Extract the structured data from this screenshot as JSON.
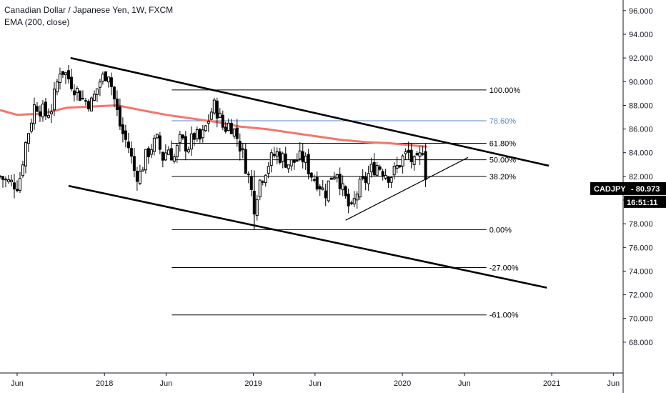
{
  "header": {
    "title": "Canadian Dollar / Japanese Yen, 1W, FXCM",
    "indicator": "EMA (200, close)"
  },
  "colors": {
    "candle": "#000000",
    "ema": "#f4766b",
    "fib_highlight": "#5b86c3",
    "price_label_bg": "#000000",
    "price_label_text": "#ffffff",
    "axis_text": "#131722",
    "axis_line": "#131722"
  },
  "chart_data": {
    "type": "candlestick",
    "symbol": "CADJPY",
    "interval": "1W",
    "last_price": "80.973",
    "countdown": "16:51:11",
    "ylim": [
      66.0,
      97.5
    ],
    "y_ticks": [
      "68.000",
      "70.000",
      "72.000",
      "74.000",
      "76.000",
      "78.000",
      "80.000",
      "82.000",
      "84.000",
      "86.000",
      "88.000",
      "90.000",
      "92.000",
      "94.000",
      "96.000"
    ],
    "x_range": [
      "2017-04-20",
      "2021-06-25"
    ],
    "x_ticks": [
      {
        "label": "Jun",
        "date": "2017-06-01"
      },
      {
        "label": "2018",
        "date": "2018-01-01"
      },
      {
        "label": "Jun",
        "date": "2018-06-01"
      },
      {
        "label": "2019",
        "date": "2019-01-01"
      },
      {
        "label": "Jun",
        "date": "2019-06-01"
      },
      {
        "label": "2020",
        "date": "2020-01-01"
      },
      {
        "label": "Jun",
        "date": "2020-06-01"
      },
      {
        "label": "2021",
        "date": "2021-01-01"
      },
      {
        "label": "Jun",
        "date": "2021-06-01"
      }
    ],
    "close_path": [
      [
        "2017-04-20",
        82.0
      ],
      [
        "2017-05-10",
        81.5
      ],
      [
        "2017-06-05",
        81.3
      ],
      [
        "2017-06-20",
        84.5
      ],
      [
        "2017-07-15",
        88.2
      ],
      [
        "2017-08-10",
        87.2
      ],
      [
        "2017-08-25",
        87.8
      ],
      [
        "2017-09-15",
        91.2
      ],
      [
        "2017-10-01",
        90.5
      ],
      [
        "2017-10-20",
        89.5
      ],
      [
        "2017-11-10",
        88.5
      ],
      [
        "2017-12-01",
        88.2
      ],
      [
        "2017-12-20",
        90.0
      ],
      [
        "2018-01-01",
        90.5
      ],
      [
        "2018-01-10",
        91.0
      ],
      [
        "2018-01-25",
        88.5
      ],
      [
        "2018-02-10",
        86.0
      ],
      [
        "2018-03-01",
        84.5
      ],
      [
        "2018-03-15",
        82.5
      ],
      [
        "2018-03-27",
        82.0
      ],
      [
        "2018-04-10",
        83.5
      ],
      [
        "2018-04-25",
        84.5
      ],
      [
        "2018-05-10",
        85.0
      ],
      [
        "2018-05-25",
        83.5
      ],
      [
        "2018-06-05",
        84.5
      ],
      [
        "2018-06-20",
        83.5
      ],
      [
        "2018-07-05",
        85.0
      ],
      [
        "2018-07-25",
        84.5
      ],
      [
        "2018-08-10",
        85.5
      ],
      [
        "2018-08-25",
        85.0
      ],
      [
        "2018-09-10",
        86.5
      ],
      [
        "2018-09-25",
        88.0
      ],
      [
        "2018-10-05",
        87.5
      ],
      [
        "2018-10-20",
        86.0
      ],
      [
        "2018-11-05",
        86.5
      ],
      [
        "2018-11-20",
        85.5
      ],
      [
        "2018-12-05",
        84.0
      ],
      [
        "2018-12-20",
        82.0
      ],
      [
        "2019-01-03",
        79.5
      ],
      [
        "2019-01-15",
        81.5
      ],
      [
        "2019-02-05",
        83.0
      ],
      [
        "2019-02-25",
        84.0
      ],
      [
        "2019-03-15",
        83.5
      ],
      [
        "2019-04-01",
        83.0
      ],
      [
        "2019-04-20",
        83.5
      ],
      [
        "2019-05-05",
        83.5
      ],
      [
        "2019-05-25",
        82.0
      ],
      [
        "2019-06-10",
        81.5
      ],
      [
        "2019-06-25",
        80.5
      ],
      [
        "2019-07-10",
        82.0
      ],
      [
        "2019-07-25",
        82.5
      ],
      [
        "2019-08-10",
        80.5
      ],
      [
        "2019-08-28",
        79.0
      ],
      [
        "2019-09-15",
        81.0
      ],
      [
        "2019-09-30",
        81.5
      ],
      [
        "2019-10-15",
        82.5
      ],
      [
        "2019-11-01",
        83.0
      ],
      [
        "2019-11-15",
        82.5
      ],
      [
        "2019-12-01",
        82.0
      ],
      [
        "2019-12-15",
        82.5
      ],
      [
        "2020-01-01",
        83.5
      ],
      [
        "2020-01-15",
        84.0
      ],
      [
        "2020-01-28",
        83.0
      ],
      [
        "2020-02-10",
        83.2
      ],
      [
        "2020-02-20",
        84.5
      ],
      [
        "2020-03-02",
        81.0
      ]
    ],
    "ema_path": [
      [
        "2017-04-20",
        87.6
      ],
      [
        "2017-06-01",
        87.2
      ],
      [
        "2017-08-01",
        87.3
      ],
      [
        "2017-10-01",
        87.8
      ],
      [
        "2017-12-01",
        87.9
      ],
      [
        "2018-02-01",
        88.0
      ],
      [
        "2018-04-01",
        87.6
      ],
      [
        "2018-06-01",
        87.2
      ],
      [
        "2018-08-01",
        86.9
      ],
      [
        "2018-10-01",
        86.6
      ],
      [
        "2018-12-01",
        86.2
      ],
      [
        "2019-02-01",
        86.0
      ],
      [
        "2019-04-01",
        85.7
      ],
      [
        "2019-06-01",
        85.4
      ],
      [
        "2019-08-01",
        85.1
      ],
      [
        "2019-10-01",
        84.9
      ],
      [
        "2019-12-01",
        84.8
      ],
      [
        "2020-02-01",
        84.6
      ],
      [
        "2020-03-02",
        84.5
      ]
    ],
    "fib_levels": [
      {
        "label": "100.00%",
        "value": 89.3,
        "highlight": false
      },
      {
        "label": "78.60%",
        "value": 86.7,
        "highlight": true
      },
      {
        "label": "61.80%",
        "value": 84.8,
        "highlight": false
      },
      {
        "label": "50.00%",
        "value": 83.4,
        "highlight": false
      },
      {
        "label": "38.20%",
        "value": 82.0,
        "highlight": false
      },
      {
        "label": "0.00%",
        "value": 77.5,
        "highlight": false
      },
      {
        "label": "-27.00%",
        "value": 74.3,
        "highlight": false
      },
      {
        "label": "-61.00%",
        "value": 70.3,
        "highlight": false
      }
    ],
    "fib_x_range": [
      "2018-06-15",
      "2020-07-25"
    ],
    "trendlines": [
      {
        "name": "upper-channel",
        "from": [
          "2017-10-10",
          92.0
        ],
        "to": [
          "2020-12-25",
          82.9
        ]
      },
      {
        "name": "lower-channel",
        "from": [
          "2017-10-05",
          81.2
        ],
        "to": [
          "2020-12-20",
          72.6
        ]
      },
      {
        "name": "rising-support",
        "from": [
          "2019-08-15",
          78.3
        ],
        "to": [
          "2020-06-10",
          83.6
        ]
      }
    ]
  }
}
